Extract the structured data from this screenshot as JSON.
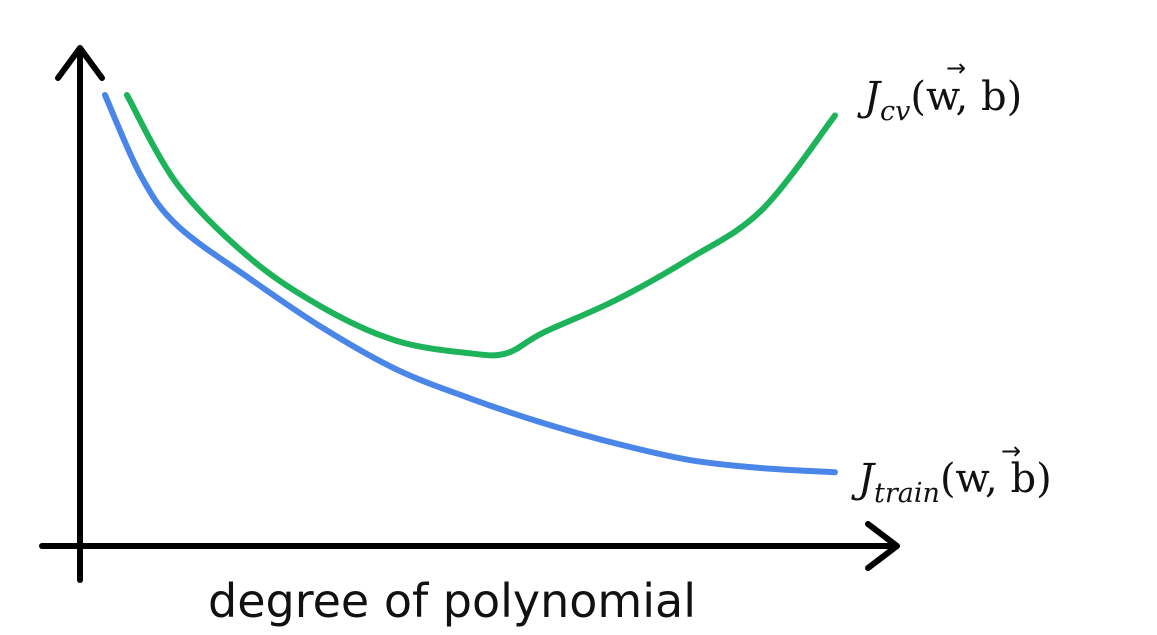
{
  "chart_data": {
    "type": "line",
    "title": "",
    "xlabel": "degree of polynomial",
    "ylabel": "",
    "ticks": "none",
    "grid": false,
    "legend": "labels at right end of each curve",
    "series": [
      {
        "name": "J_cv(w,b)",
        "label": {
          "J": "J",
          "sub": "cv",
          "args_open": "(",
          "vec": "w",
          "args_rest": ", b)"
        },
        "color": "#1db35a",
        "shape": "U-shaped",
        "x": [
          0.03,
          0.1,
          0.2,
          0.3,
          0.4,
          0.5,
          0.55,
          0.6,
          0.7,
          0.8,
          0.9,
          1.0
        ],
        "y": [
          1.0,
          0.78,
          0.6,
          0.48,
          0.4,
          0.37,
          0.37,
          0.42,
          0.5,
          0.6,
          0.72,
          0.95
        ]
      },
      {
        "name": "J_train(w,b)",
        "label": {
          "J": "J",
          "sub": "train",
          "args_open": "(",
          "vec": "w",
          "args_rest": ", b)"
        },
        "color": "#4a86e8",
        "shape": "decreasing",
        "x": [
          0.0,
          0.05,
          0.1,
          0.2,
          0.3,
          0.4,
          0.5,
          0.6,
          0.7,
          0.8,
          0.9,
          1.0
        ],
        "y": [
          1.0,
          0.8,
          0.68,
          0.55,
          0.43,
          0.33,
          0.26,
          0.2,
          0.15,
          0.11,
          0.09,
          0.08
        ]
      }
    ]
  }
}
